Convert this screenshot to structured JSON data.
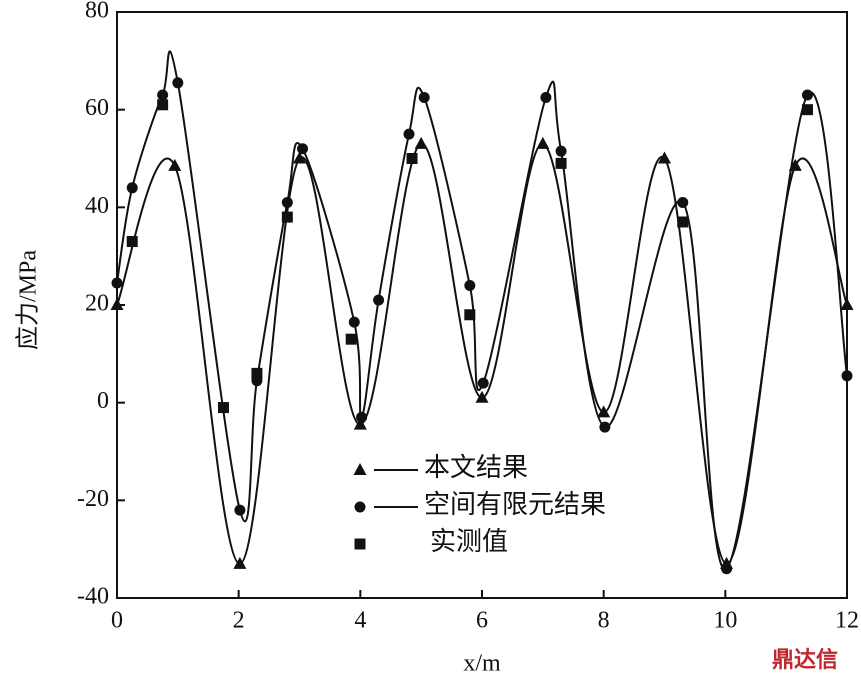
{
  "chart_data": {
    "type": "line",
    "x_label": "x/m",
    "y_label": "应力/MPa",
    "xlim": [
      0,
      12
    ],
    "ylim": [
      -40,
      80
    ],
    "xticks": [
      0,
      2,
      4,
      6,
      8,
      10,
      12
    ],
    "yticks": [
      -40,
      -20,
      0,
      20,
      40,
      60,
      80
    ],
    "watermark": "鼎达信",
    "series": [
      {
        "name": "本文结果",
        "color": "#111111",
        "marker": "triangle",
        "line": true,
        "x": [
          0,
          0.95,
          2.02,
          3,
          4,
          5,
          6,
          7,
          8,
          9,
          10.02,
          11.15,
          12
        ],
        "values": [
          20,
          48.5,
          -33,
          50,
          -4.5,
          53,
          1,
          53,
          -2,
          50,
          -33,
          48.5,
          20
        ]
      },
      {
        "name": "空间有限元结果",
        "color": "#111111",
        "marker": "circle",
        "line": true,
        "x": [
          0,
          0.25,
          0.75,
          1,
          2.02,
          2.3,
          2.8,
          3.05,
          3.9,
          4.02,
          4.3,
          4.8,
          5.05,
          5.8,
          6.02,
          7.05,
          7.3,
          8.02,
          9.3,
          10.02,
          11.35,
          12
        ],
        "values": [
          24.5,
          44,
          63,
          65.5,
          -22,
          4.5,
          41,
          52,
          16.5,
          -3,
          21,
          55,
          62.5,
          24,
          4,
          62.5,
          51.5,
          -5,
          41,
          -34,
          63,
          5.5
        ]
      },
      {
        "name": "实测值",
        "color": "#111111",
        "marker": "square",
        "line": false,
        "x": [
          0.25,
          0.75,
          1.75,
          2.3,
          2.8,
          3.85,
          4.85,
          5.8,
          7.3,
          9.3,
          11.35
        ],
        "values": [
          33,
          61,
          -1,
          6,
          38,
          13,
          50,
          18,
          49,
          37,
          60
        ]
      }
    ]
  }
}
